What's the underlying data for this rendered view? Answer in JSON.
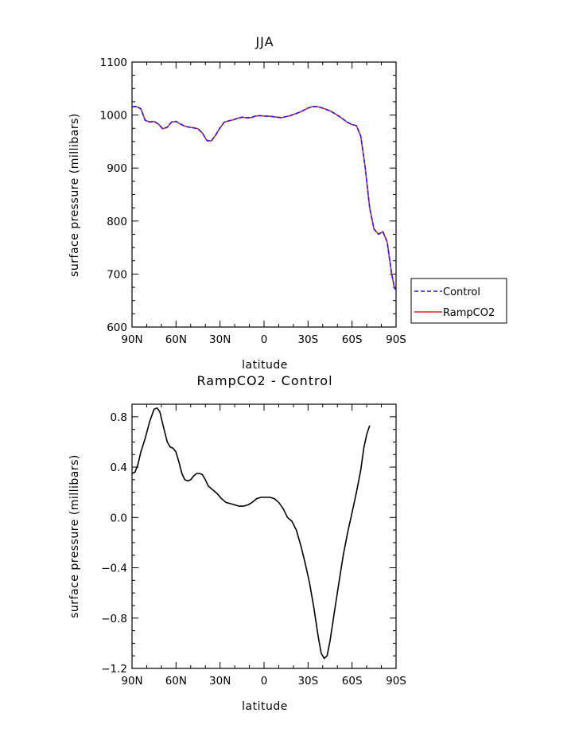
{
  "chart_data": [
    {
      "type": "line",
      "title": "JJA",
      "xlabel": "latitude",
      "ylabel": "surface pressure (millibars)",
      "xlim": [
        90,
        -90
      ],
      "ylim": [
        600,
        1100
      ],
      "xticks": [
        {
          "v": 90,
          "label": "90N"
        },
        {
          "v": 60,
          "label": "60N"
        },
        {
          "v": 30,
          "label": "30N"
        },
        {
          "v": 0,
          "label": "0"
        },
        {
          "v": -30,
          "label": "30S"
        },
        {
          "v": -60,
          "label": "60S"
        },
        {
          "v": -90,
          "label": "90S"
        }
      ],
      "yticks": [
        {
          "v": 600,
          "label": "600"
        },
        {
          "v": 700,
          "label": "700"
        },
        {
          "v": 800,
          "label": "800"
        },
        {
          "v": 900,
          "label": "900"
        },
        {
          "v": 1000,
          "label": "1000"
        },
        {
          "v": 1100,
          "label": "1100"
        }
      ],
      "legend": "right",
      "series": [
        {
          "name": "Control",
          "color": "#1a1aff",
          "dash": true,
          "points": [
            [
              90,
              1016
            ],
            [
              87,
              1016
            ],
            [
              84,
              1012
            ],
            [
              81,
              990
            ],
            [
              78,
              987
            ],
            [
              75,
              988
            ],
            [
              72,
              983
            ],
            [
              69,
              974
            ],
            [
              66,
              977
            ],
            [
              63,
              987
            ],
            [
              60,
              988
            ],
            [
              57,
              983
            ],
            [
              54,
              979
            ],
            [
              51,
              977
            ],
            [
              48,
              976
            ],
            [
              45,
              974
            ],
            [
              42,
              966
            ],
            [
              39,
              952
            ],
            [
              36,
              951
            ],
            [
              33,
              962
            ],
            [
              30,
              976
            ],
            [
              27,
              987
            ],
            [
              24,
              989
            ],
            [
              21,
              991
            ],
            [
              18,
              994
            ],
            [
              15,
              996
            ],
            [
              12,
              995
            ],
            [
              9,
              995
            ],
            [
              6,
              998
            ],
            [
              3,
              999
            ],
            [
              0,
              998
            ],
            [
              -3,
              998
            ],
            [
              -6,
              997
            ],
            [
              -9,
              996
            ],
            [
              -12,
              995
            ],
            [
              -15,
              997
            ],
            [
              -18,
              999
            ],
            [
              -21,
              1002
            ],
            [
              -24,
              1005
            ],
            [
              -27,
              1009
            ],
            [
              -30,
              1013
            ],
            [
              -33,
              1016
            ],
            [
              -36,
              1016
            ],
            [
              -39,
              1014
            ],
            [
              -42,
              1011
            ],
            [
              -45,
              1008
            ],
            [
              -48,
              1003
            ],
            [
              -51,
              998
            ],
            [
              -54,
              992
            ],
            [
              -57,
              986
            ],
            [
              -60,
              982
            ],
            [
              -63,
              980
            ],
            [
              -66,
              960
            ],
            [
              -69,
              900
            ],
            [
              -72,
              825
            ],
            [
              -75,
              785
            ],
            [
              -78,
              775
            ],
            [
              -81,
              780
            ],
            [
              -84,
              760
            ],
            [
              -87,
              700
            ],
            [
              -89,
              673
            ],
            [
              -90,
              670
            ]
          ]
        },
        {
          "name": "RampCO2",
          "color": "#e8261f",
          "dash": false,
          "points": [
            [
              90,
              1016
            ],
            [
              87,
              1016
            ],
            [
              84,
              1012
            ],
            [
              81,
              990
            ],
            [
              78,
              987
            ],
            [
              75,
              988
            ],
            [
              72,
              983
            ],
            [
              69,
              974
            ],
            [
              66,
              977
            ],
            [
              63,
              987
            ],
            [
              60,
              988
            ],
            [
              57,
              983
            ],
            [
              54,
              979
            ],
            [
              51,
              977
            ],
            [
              48,
              976
            ],
            [
              45,
              974
            ],
            [
              42,
              966
            ],
            [
              39,
              952
            ],
            [
              36,
              951
            ],
            [
              33,
              962
            ],
            [
              30,
              976
            ],
            [
              27,
              987
            ],
            [
              24,
              989
            ],
            [
              21,
              991
            ],
            [
              18,
              994
            ],
            [
              15,
              996
            ],
            [
              12,
              995
            ],
            [
              9,
              995
            ],
            [
              6,
              998
            ],
            [
              3,
              999
            ],
            [
              0,
              998
            ],
            [
              -3,
              998
            ],
            [
              -6,
              997
            ],
            [
              -9,
              996
            ],
            [
              -12,
              995
            ],
            [
              -15,
              997
            ],
            [
              -18,
              999
            ],
            [
              -21,
              1002
            ],
            [
              -24,
              1005
            ],
            [
              -27,
              1009
            ],
            [
              -30,
              1013
            ],
            [
              -33,
              1016
            ],
            [
              -36,
              1016
            ],
            [
              -39,
              1014
            ],
            [
              -42,
              1011
            ],
            [
              -45,
              1008
            ],
            [
              -48,
              1003
            ],
            [
              -51,
              998
            ],
            [
              -54,
              992
            ],
            [
              -57,
              986
            ],
            [
              -60,
              982
            ],
            [
              -63,
              980
            ],
            [
              -66,
              960
            ],
            [
              -69,
              900
            ],
            [
              -72,
              825
            ],
            [
              -75,
              785
            ],
            [
              -78,
              775
            ],
            [
              -81,
              780
            ],
            [
              -84,
              760
            ],
            [
              -87,
              700
            ],
            [
              -89,
              673
            ],
            [
              -90,
              670
            ]
          ]
        }
      ]
    },
    {
      "type": "line",
      "title": "RampCO2 - Control",
      "xlabel": "latitude",
      "ylabel": "surface pressure (millibars)",
      "xlim": [
        90,
        -90
      ],
      "ylim": [
        -1.2,
        0.9
      ],
      "xticks": [
        {
          "v": 90,
          "label": "90N"
        },
        {
          "v": 60,
          "label": "60N"
        },
        {
          "v": 30,
          "label": "30N"
        },
        {
          "v": 0,
          "label": "0"
        },
        {
          "v": -30,
          "label": "30S"
        },
        {
          "v": -60,
          "label": "60S"
        },
        {
          "v": -90,
          "label": "90S"
        }
      ],
      "yticks": [
        {
          "v": -1.2,
          "label": "−1.2"
        },
        {
          "v": -0.8,
          "label": "−0.8"
        },
        {
          "v": -0.4,
          "label": "−0.4"
        },
        {
          "v": 0.0,
          "label": "0.0"
        },
        {
          "v": 0.4,
          "label": "0.4"
        },
        {
          "v": 0.8,
          "label": "0.8"
        }
      ],
      "series": [
        {
          "name": "",
          "color": "#000000",
          "dash": false,
          "points": [
            [
              90,
              0.35
            ],
            [
              88,
              0.36
            ],
            [
              86,
              0.42
            ],
            [
              84,
              0.52
            ],
            [
              81,
              0.63
            ],
            [
              78,
              0.76
            ],
            [
              75,
              0.86
            ],
            [
              73,
              0.87
            ],
            [
              71,
              0.84
            ],
            [
              69,
              0.74
            ],
            [
              66,
              0.6
            ],
            [
              64,
              0.56
            ],
            [
              62,
              0.55
            ],
            [
              60,
              0.52
            ],
            [
              58,
              0.44
            ],
            [
              56,
              0.35
            ],
            [
              54,
              0.3
            ],
            [
              52,
              0.29
            ],
            [
              50,
              0.3
            ],
            [
              48,
              0.33
            ],
            [
              46,
              0.35
            ],
            [
              44,
              0.35
            ],
            [
              42,
              0.34
            ],
            [
              40,
              0.3
            ],
            [
              38,
              0.25
            ],
            [
              35,
              0.22
            ],
            [
              32,
              0.19
            ],
            [
              29,
              0.15
            ],
            [
              26,
              0.12
            ],
            [
              23,
              0.11
            ],
            [
              20,
              0.1
            ],
            [
              17,
              0.09
            ],
            [
              14,
              0.09
            ],
            [
              11,
              0.1
            ],
            [
              8,
              0.12
            ],
            [
              5,
              0.15
            ],
            [
              2,
              0.16
            ],
            [
              -1,
              0.16
            ],
            [
              -4,
              0.16
            ],
            [
              -7,
              0.15
            ],
            [
              -10,
              0.12
            ],
            [
              -13,
              0.07
            ],
            [
              -16,
              0.0
            ],
            [
              -19,
              -0.03
            ],
            [
              -22,
              -0.1
            ],
            [
              -25,
              -0.22
            ],
            [
              -28,
              -0.36
            ],
            [
              -31,
              -0.52
            ],
            [
              -34,
              -0.72
            ],
            [
              -37,
              -0.95
            ],
            [
              -39,
              -1.08
            ],
            [
              -41,
              -1.12
            ],
            [
              -43,
              -1.1
            ],
            [
              -45,
              -0.98
            ],
            [
              -48,
              -0.75
            ],
            [
              -51,
              -0.52
            ],
            [
              -54,
              -0.3
            ],
            [
              -57,
              -0.12
            ],
            [
              -60,
              0.04
            ],
            [
              -63,
              0.2
            ],
            [
              -66,
              0.38
            ],
            [
              -68,
              0.55
            ],
            [
              -70,
              0.66
            ],
            [
              -72,
              0.73
            ]
          ]
        }
      ]
    }
  ],
  "legend": {
    "items": [
      {
        "label": "Control",
        "color": "#1a1aff",
        "dash": true
      },
      {
        "label": "RampCO2",
        "color": "#e8261f",
        "dash": false
      }
    ]
  }
}
